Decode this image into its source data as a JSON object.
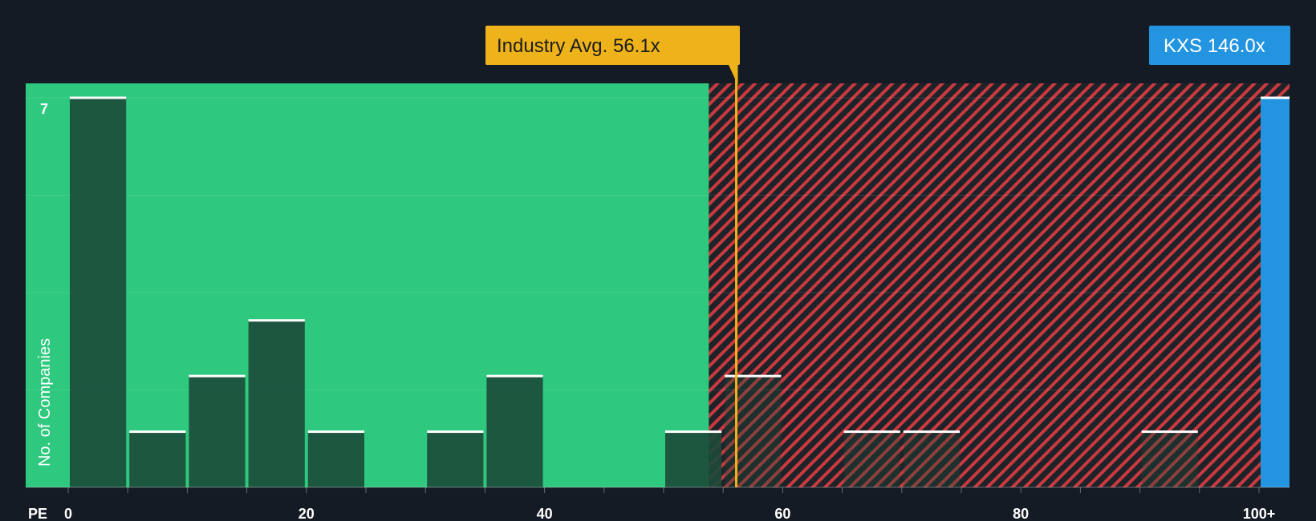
{
  "chart_data": {
    "type": "bar",
    "xlabel": "PE",
    "ylabel": "No. of Companies",
    "x_ticks": [
      {
        "value": 0,
        "label": "0"
      },
      {
        "value": 20,
        "label": "20"
      },
      {
        "value": 40,
        "label": "40"
      },
      {
        "value": 60,
        "label": "60"
      },
      {
        "value": 80,
        "label": "80"
      },
      {
        "value": 100,
        "label": "100+"
      }
    ],
    "y_ticks": [
      {
        "value": 7,
        "label": "7"
      }
    ],
    "xlim": [
      0,
      102.5
    ],
    "ylim": [
      0,
      7
    ],
    "bins": [
      {
        "x0": 0,
        "x1": 5,
        "count": 7
      },
      {
        "x0": 5,
        "x1": 10,
        "count": 1
      },
      {
        "x0": 10,
        "x1": 15,
        "count": 2
      },
      {
        "x0": 15,
        "x1": 20,
        "count": 3
      },
      {
        "x0": 20,
        "x1": 25,
        "count": 1
      },
      {
        "x0": 30,
        "x1": 35,
        "count": 1
      },
      {
        "x0": 35,
        "x1": 40,
        "count": 2
      },
      {
        "x0": 50,
        "x1": 55,
        "count": 1
      },
      {
        "x0": 55,
        "x1": 60,
        "count": 2
      },
      {
        "x0": 65,
        "x1": 70,
        "count": 1
      },
      {
        "x0": 70,
        "x1": 75,
        "count": 1
      },
      {
        "x0": 90,
        "x1": 95,
        "count": 1
      }
    ],
    "fair_zone_end": 53.8,
    "industry_avg": {
      "value": 56.1,
      "label": "Industry Avg. 56.1x"
    },
    "company": {
      "ticker_label": "KXS 146.0x",
      "value": 146.0,
      "count": 7
    },
    "grid": true
  },
  "colors": {
    "background": "#151b24",
    "undervalued_zone": "#2ec97e",
    "overvalued_zone": "#1e2229",
    "hatch": "#c93a3f",
    "bar": "#1c4a3a",
    "bar_top": "#ffffff",
    "industry": "#eeb31b",
    "company": "#2394df",
    "text": "#ffffff"
  }
}
